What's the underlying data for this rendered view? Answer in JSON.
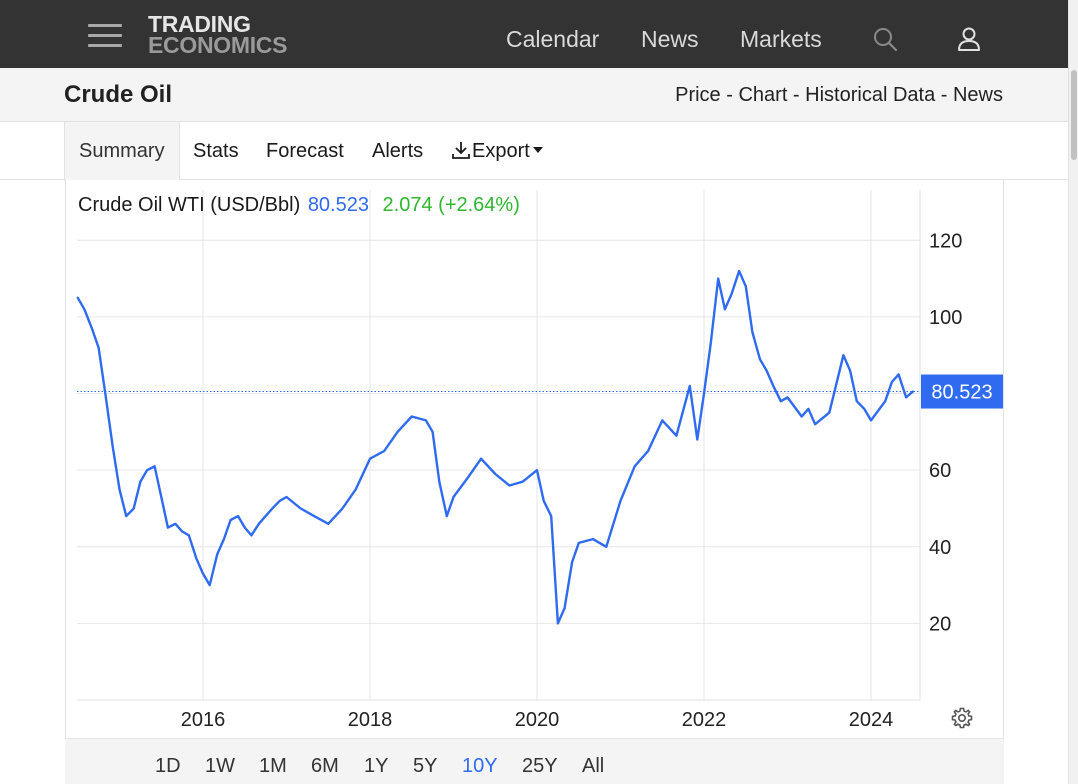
{
  "nav": {
    "logo_line1": "TRADING",
    "logo_line2": "ECONOMICS",
    "links": [
      "Calendar",
      "News",
      "Markets"
    ]
  },
  "page": {
    "title": "Crude Oil",
    "sub_links": [
      "Price",
      "Chart",
      "Historical Data",
      "News"
    ],
    "separator": " - "
  },
  "tabs": [
    "Summary",
    "Stats",
    "Forecast",
    "Alerts",
    "Export"
  ],
  "active_tab": "Summary",
  "chart_header": {
    "name": "Crude Oil WTI (USD/Bbl)",
    "price": "80.523",
    "change": "2.074 (+2.64%)"
  },
  "ranges": [
    "1D",
    "1W",
    "1M",
    "6M",
    "1Y",
    "5Y",
    "10Y",
    "25Y",
    "All"
  ],
  "active_range": "10Y",
  "colors": {
    "line": "#2f6bf0",
    "price_tag": "#2f6bf0",
    "change_positive": "#2eb82e",
    "grid": "#e6e6e6"
  },
  "chart_data": {
    "type": "line",
    "title": "Crude Oil WTI (USD/Bbl)",
    "ylim": [
      0,
      130
    ],
    "yticks": [
      20,
      40,
      60,
      100,
      120
    ],
    "xticks": [
      "2016",
      "2018",
      "2020",
      "2022",
      "2024"
    ],
    "last_value": 80.523,
    "price_tag_label": "80.523",
    "grid": true,
    "series": [
      {
        "x": [
          2014.5,
          2014.58,
          2014.67,
          2014.75,
          2014.83,
          2014.92,
          2015.0,
          2015.08,
          2015.17,
          2015.25,
          2015.33,
          2015.42,
          2015.5,
          2015.58,
          2015.67,
          2015.75,
          2015.83,
          2015.92,
          2016.0,
          2016.08,
          2016.17,
          2016.25,
          2016.33,
          2016.42,
          2016.5,
          2016.58,
          2016.67,
          2016.75,
          2016.83,
          2016.92,
          2017.0,
          2017.17,
          2017.33,
          2017.5,
          2017.67,
          2017.83,
          2018.0,
          2018.17,
          2018.33,
          2018.5,
          2018.67,
          2018.75,
          2018.83,
          2018.92,
          2019.0,
          2019.17,
          2019.33,
          2019.5,
          2019.67,
          2019.83,
          2020.0,
          2020.08,
          2020.17,
          2020.25,
          2020.33,
          2020.42,
          2020.5,
          2020.67,
          2020.83,
          2021.0,
          2021.17,
          2021.33,
          2021.5,
          2021.67,
          2021.83,
          2021.92,
          2022.0,
          2022.08,
          2022.17,
          2022.25,
          2022.33,
          2022.42,
          2022.5,
          2022.58,
          2022.67,
          2022.75,
          2022.83,
          2022.92,
          2023.0,
          2023.17,
          2023.25,
          2023.33,
          2023.5,
          2023.67,
          2023.75,
          2023.83,
          2023.92,
          2024.0,
          2024.17,
          2024.25,
          2024.33,
          2024.42,
          2024.5
        ],
        "values": [
          105,
          102,
          97,
          92,
          80,
          66,
          55,
          48,
          50,
          57,
          60,
          61,
          53,
          45,
          46,
          44,
          43,
          37,
          33,
          30,
          38,
          42,
          47,
          48,
          45,
          43,
          46,
          48,
          50,
          52,
          53,
          50,
          48,
          46,
          50,
          55,
          63,
          65,
          70,
          74,
          73,
          70,
          57,
          48,
          53,
          58,
          63,
          59,
          56,
          57,
          60,
          52,
          48,
          20,
          24,
          36,
          41,
          42,
          40,
          52,
          61,
          65,
          73,
          69,
          82,
          68,
          80,
          93,
          110,
          102,
          106,
          112,
          108,
          96,
          89,
          86,
          82,
          78,
          79,
          74,
          76,
          72,
          75,
          90,
          86,
          78,
          76,
          73,
          78,
          83,
          85,
          79,
          80.5
        ]
      }
    ]
  }
}
